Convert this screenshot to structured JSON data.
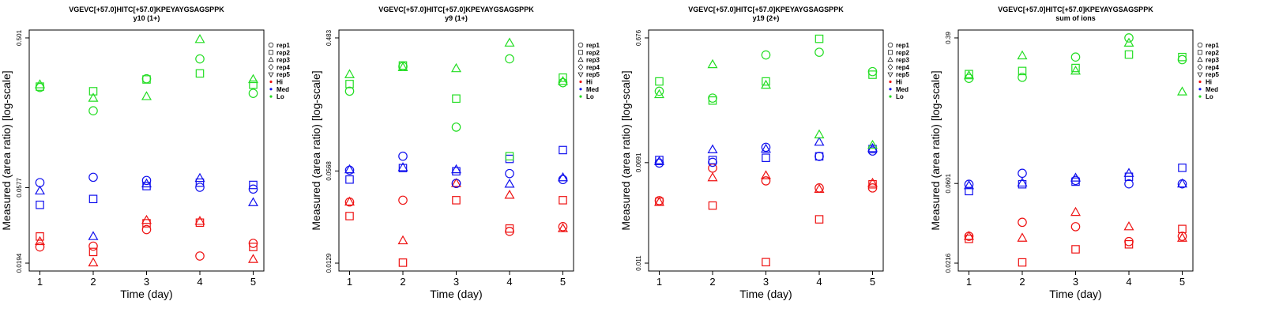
{
  "chart_data": [
    {
      "type": "scatter",
      "title": "VGEVC[+57.0]HITC[+57.0]KPEYAYGSAGSPPK",
      "subtitle": "y10 (1+)",
      "xlabel": "Time (day)",
      "ylabel": "Measured (area ratio) [log-scale]",
      "x_ticks": [
        "1",
        "2",
        "3",
        "4",
        "5"
      ],
      "y_ticks": [
        {
          "label": "0.0194",
          "value": 0.0194
        },
        {
          "label": "0.0577",
          "value": 0.0577
        },
        {
          "label": "0.501",
          "value": 0.501
        }
      ],
      "ylim": [
        0.0194,
        0.501
      ],
      "y_scale": "log",
      "grid": false,
      "legend_position": "right",
      "series": [
        {
          "group": "Hi",
          "rep": "rep1",
          "points": [
            [
              1,
              0.0245
            ],
            [
              2,
              0.0248
            ],
            [
              3,
              0.0315
            ],
            [
              4,
              0.0215
            ],
            [
              5,
              0.0258
            ]
          ]
        },
        {
          "group": "Hi",
          "rep": "rep2",
          "points": [
            [
              1,
              0.0285
            ],
            [
              2,
              0.0228
            ],
            [
              3,
              0.0345
            ],
            [
              4,
              0.0348
            ],
            [
              5,
              0.0245
            ]
          ]
        },
        {
          "group": "Hi",
          "rep": "rep3",
          "points": [
            [
              1,
              0.0265
            ],
            [
              2,
              0.0195
            ],
            [
              3,
              0.036
            ],
            [
              4,
              0.0355
            ],
            [
              5,
              0.0205
            ]
          ]
        },
        {
          "group": "Med",
          "rep": "rep1",
          "points": [
            [
              1,
              0.062
            ],
            [
              2,
              0.067
            ],
            [
              3,
              0.064
            ],
            [
              4,
              0.058
            ],
            [
              5,
              0.0565
            ]
          ]
        },
        {
          "group": "Med",
          "rep": "rep2",
          "points": [
            [
              1,
              0.045
            ],
            [
              2,
              0.049
            ],
            [
              3,
              0.059
            ],
            [
              4,
              0.062
            ],
            [
              5,
              0.06
            ]
          ]
        },
        {
          "group": "Med",
          "rep": "rep3",
          "points": [
            [
              1,
              0.055
            ],
            [
              2,
              0.0285
            ],
            [
              3,
              0.061
            ],
            [
              4,
              0.066
            ],
            [
              5,
              0.0465
            ]
          ]
        },
        {
          "group": "Lo",
          "rep": "rep1",
          "points": [
            [
              1,
              0.245
            ],
            [
              2,
              0.175
            ],
            [
              3,
              0.278
            ],
            [
              4,
              0.37
            ],
            [
              5,
              0.225
            ]
          ]
        },
        {
          "group": "Lo",
          "rep": "rep2",
          "points": [
            [
              1,
              0.248
            ],
            [
              2,
              0.232
            ],
            [
              3,
              0.275
            ],
            [
              4,
              0.3
            ],
            [
              5,
              0.255
            ]
          ]
        },
        {
          "group": "Lo",
          "rep": "rep3",
          "points": [
            [
              1,
              0.255
            ],
            [
              2,
              0.21
            ],
            [
              3,
              0.215
            ],
            [
              4,
              0.49
            ],
            [
              5,
              0.275
            ]
          ]
        }
      ]
    },
    {
      "type": "scatter",
      "title": "VGEVC[+57.0]HITC[+57.0]KPEYAYGSAGSPPK",
      "subtitle": "y9 (1+)",
      "xlabel": "Time (day)",
      "ylabel": "Measured (area ratio) [log-scale]",
      "x_ticks": [
        "1",
        "2",
        "3",
        "4",
        "5"
      ],
      "y_ticks": [
        {
          "label": "0.0129",
          "value": 0.0129
        },
        {
          "label": "0.0568",
          "value": 0.0568
        },
        {
          "label": "0.483",
          "value": 0.483
        }
      ],
      "ylim": [
        0.0129,
        0.483
      ],
      "y_scale": "log",
      "grid": false,
      "legend_position": "right",
      "series": [
        {
          "group": "Hi",
          "rep": "rep1",
          "points": [
            [
              1,
              0.0345
            ],
            [
              2,
              0.0355
            ],
            [
              3,
              0.0465
            ],
            [
              4,
              0.0215
            ],
            [
              5,
              0.0232
            ]
          ]
        },
        {
          "group": "Hi",
          "rep": "rep2",
          "points": [
            [
              1,
              0.0275
            ],
            [
              2,
              0.013
            ],
            [
              3,
              0.0355
            ],
            [
              4,
              0.0225
            ],
            [
              5,
              0.0355
            ]
          ]
        },
        {
          "group": "Hi",
          "rep": "rep3",
          "points": [
            [
              1,
              0.0345
            ],
            [
              2,
              0.0185
            ],
            [
              3,
              0.0465
            ],
            [
              4,
              0.0385
            ],
            [
              5,
              0.0225
            ]
          ]
        },
        {
          "group": "Med",
          "rep": "rep1",
          "points": [
            [
              1,
              0.0575
            ],
            [
              2,
              0.072
            ],
            [
              3,
              0.0465
            ],
            [
              4,
              0.0545
            ],
            [
              5,
              0.0495
            ]
          ]
        },
        {
          "group": "Med",
          "rep": "rep2",
          "points": [
            [
              1,
              0.0495
            ],
            [
              2,
              0.0595
            ],
            [
              3,
              0.0565
            ],
            [
              4,
              0.069
            ],
            [
              5,
              0.0795
            ]
          ]
        },
        {
          "group": "Med",
          "rep": "rep3",
          "points": [
            [
              1,
              0.058
            ],
            [
              2,
              0.06
            ],
            [
              3,
              0.058
            ],
            [
              4,
              0.046
            ],
            [
              5,
              0.051
            ]
          ]
        },
        {
          "group": "Lo",
          "rep": "rep1",
          "points": [
            [
              1,
              0.205
            ],
            [
              2,
              0.305
            ],
            [
              3,
              0.115
            ],
            [
              4,
              0.345
            ],
            [
              5,
              0.235
            ]
          ]
        },
        {
          "group": "Lo",
          "rep": "rep2",
          "points": [
            [
              1,
              0.23
            ],
            [
              2,
              0.31
            ],
            [
              3,
              0.182
            ],
            [
              4,
              0.072
            ],
            [
              5,
              0.255
            ]
          ]
        },
        {
          "group": "Lo",
          "rep": "rep3",
          "points": [
            [
              1,
              0.268
            ],
            [
              2,
              0.3
            ],
            [
              3,
              0.295
            ],
            [
              4,
              0.445
            ],
            [
              5,
              0.24
            ]
          ]
        }
      ]
    },
    {
      "type": "scatter",
      "title": "VGEVC[+57.0]HITC[+57.0]KPEYAYGSAGSPPK",
      "subtitle": "y19 (2+)",
      "xlabel": "Time (day)",
      "ylabel": "Measured (area ratio) [log-scale]",
      "x_ticks": [
        "1",
        "2",
        "3",
        "4",
        "5"
      ],
      "y_ticks": [
        {
          "label": "0.011",
          "value": 0.011
        },
        {
          "label": "0.0691",
          "value": 0.0691
        },
        {
          "label": "0.676",
          "value": 0.676
        }
      ],
      "ylim": [
        0.011,
        0.676
      ],
      "y_scale": "log",
      "grid": false,
      "legend_position": "right",
      "series": [
        {
          "group": "Hi",
          "rep": "rep1",
          "points": [
            [
              1,
              0.0345
            ],
            [
              2,
              0.0625
            ],
            [
              3,
              0.0495
            ],
            [
              4,
              0.0435
            ],
            [
              5,
              0.0435
            ]
          ]
        },
        {
          "group": "Hi",
          "rep": "rep2",
          "points": [
            [
              1,
              0.0338
            ],
            [
              2,
              0.0315
            ],
            [
              3,
              0.0112
            ],
            [
              4,
              0.0245
            ],
            [
              5,
              0.0465
            ]
          ]
        },
        {
          "group": "Hi",
          "rep": "rep3",
          "points": [
            [
              1,
              0.0335
            ],
            [
              2,
              0.0525
            ],
            [
              3,
              0.0545
            ],
            [
              4,
              0.0425
            ],
            [
              5,
              0.0475
            ]
          ]
        },
        {
          "group": "Med",
          "rep": "rep1",
          "points": [
            [
              1,
              0.0685
            ],
            [
              2,
              0.0695
            ],
            [
              3,
              0.0915
            ],
            [
              4,
              0.0775
            ],
            [
              5,
              0.0855
            ]
          ]
        },
        {
          "group": "Med",
          "rep": "rep2",
          "points": [
            [
              1,
              0.0725
            ],
            [
              2,
              0.0725
            ],
            [
              3,
              0.0755
            ],
            [
              4,
              0.0775
            ],
            [
              5,
              0.0885
            ]
          ]
        },
        {
          "group": "Med",
          "rep": "rep3",
          "points": [
            [
              1,
              0.0705
            ],
            [
              2,
              0.0875
            ],
            [
              3,
              0.0885
            ],
            [
              4,
              0.1005
            ],
            [
              5,
              0.0895
            ]
          ]
        },
        {
          "group": "Lo",
          "rep": "rep1",
          "points": [
            [
              1,
              0.255
            ],
            [
              2,
              0.225
            ],
            [
              3,
              0.495
            ],
            [
              4,
              0.52
            ],
            [
              5,
              0.365
            ]
          ]
        },
        {
          "group": "Lo",
          "rep": "rep2",
          "points": [
            [
              1,
              0.305
            ],
            [
              2,
              0.215
            ],
            [
              3,
              0.305
            ],
            [
              4,
              0.665
            ],
            [
              5,
              0.345
            ]
          ]
        },
        {
          "group": "Lo",
          "rep": "rep3",
          "points": [
            [
              1,
              0.24
            ],
            [
              2,
              0.415
            ],
            [
              3,
              0.285
            ],
            [
              4,
              0.115
            ],
            [
              5,
              0.095
            ]
          ]
        }
      ]
    },
    {
      "type": "scatter",
      "title": "VGEVC[+57.0]HITC[+57.0]KPEYAYGSAGSPPK",
      "subtitle": "sum of ions",
      "xlabel": "Time (day)",
      "ylabel": "Measured (area ratio) [log-scale]",
      "x_ticks": [
        "1",
        "2",
        "3",
        "4",
        "5"
      ],
      "y_ticks": [
        {
          "label": "0.0216",
          "value": 0.0216
        },
        {
          "label": "0.0601",
          "value": 0.0601
        },
        {
          "label": "0.39",
          "value": 0.39
        }
      ],
      "ylim": [
        0.0216,
        0.39
      ],
      "y_scale": "log",
      "grid": false,
      "legend_position": "right",
      "series": [
        {
          "group": "Hi",
          "rep": "rep1",
          "points": [
            [
              1,
              0.0305
            ],
            [
              2,
              0.0365
            ],
            [
              3,
              0.0345
            ],
            [
              4,
              0.0285
            ],
            [
              5,
              0.0305
            ]
          ]
        },
        {
          "group": "Hi",
          "rep": "rep2",
          "points": [
            [
              1,
              0.0295
            ],
            [
              2,
              0.0218
            ],
            [
              3,
              0.0258
            ],
            [
              4,
              0.0275
            ],
            [
              5,
              0.0335
            ]
          ]
        },
        {
          "group": "Hi",
          "rep": "rep3",
          "points": [
            [
              1,
              0.0305
            ],
            [
              2,
              0.0298
            ],
            [
              3,
              0.0415
            ],
            [
              4,
              0.0345
            ],
            [
              5,
              0.0298
            ]
          ]
        },
        {
          "group": "Med",
          "rep": "rep1",
          "points": [
            [
              1,
              0.0595
            ],
            [
              2,
              0.0685
            ],
            [
              3,
              0.0625
            ],
            [
              4,
              0.0598
            ],
            [
              5,
              0.0598
            ]
          ]
        },
        {
          "group": "Med",
          "rep": "rep2",
          "points": [
            [
              1,
              0.0545
            ],
            [
              2,
              0.0595
            ],
            [
              3,
              0.0615
            ],
            [
              4,
              0.0655
            ],
            [
              5,
              0.0735
            ]
          ]
        },
        {
          "group": "Med",
          "rep": "rep3",
          "points": [
            [
              1,
              0.0585
            ],
            [
              2,
              0.0605
            ],
            [
              3,
              0.0645
            ],
            [
              4,
              0.0685
            ],
            [
              5,
              0.0598
            ]
          ]
        },
        {
          "group": "Lo",
          "rep": "rep1",
          "points": [
            [
              1,
              0.232
            ],
            [
              2,
              0.235
            ],
            [
              3,
              0.305
            ],
            [
              4,
              0.39
            ],
            [
              5,
              0.295
            ]
          ]
        },
        {
          "group": "Lo",
          "rep": "rep2",
          "points": [
            [
              1,
              0.245
            ],
            [
              2,
              0.255
            ],
            [
              3,
              0.265
            ],
            [
              4,
              0.315
            ],
            [
              5,
              0.305
            ]
          ]
        },
        {
          "group": "Lo",
          "rep": "rep3",
          "points": [
            [
              1,
              0.24
            ],
            [
              2,
              0.31
            ],
            [
              3,
              0.255
            ],
            [
              4,
              0.365
            ],
            [
              5,
              0.195
            ]
          ]
        }
      ]
    }
  ],
  "legend": {
    "reps": [
      {
        "label": "rep1",
        "marker": "circle"
      },
      {
        "label": "rep2",
        "marker": "square"
      },
      {
        "label": "rep3",
        "marker": "triangle-up"
      },
      {
        "label": "rep4",
        "marker": "diamond"
      },
      {
        "label": "rep5",
        "marker": "triangle-down"
      }
    ],
    "groups": [
      {
        "label": "Hi",
        "color": "#ee1111"
      },
      {
        "label": "Med",
        "color": "#1111ee"
      },
      {
        "label": "Lo",
        "color": "#22dd22"
      }
    ]
  },
  "group_colors": {
    "Hi": "#ee1111",
    "Med": "#1111ee",
    "Lo": "#22dd22"
  },
  "rep_markers": {
    "rep1": "circle",
    "rep2": "square",
    "rep3": "triangle-up",
    "rep4": "diamond",
    "rep5": "triangle-down"
  }
}
